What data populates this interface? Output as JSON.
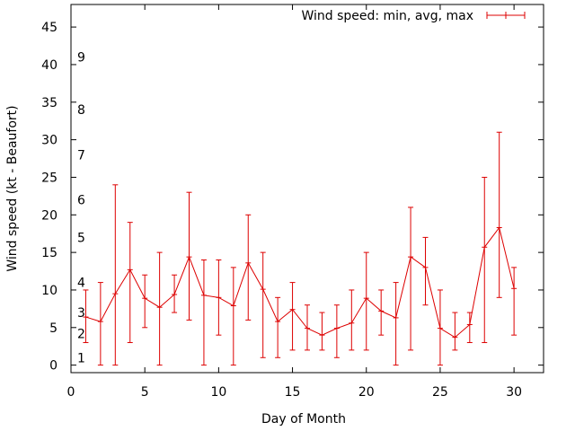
{
  "chart_data": {
    "type": "line",
    "title": "",
    "xlabel": "Day of Month",
    "ylabel": "Wind speed (kt - Beaufort)",
    "xlim": [
      0,
      32
    ],
    "ylim": [
      -1,
      48
    ],
    "x_ticks": [
      0,
      5,
      10,
      15,
      20,
      25,
      30
    ],
    "y_ticks": [
      0,
      5,
      10,
      15,
      20,
      25,
      30,
      35,
      40,
      45
    ],
    "legend": {
      "label": "Wind speed: min, avg, max",
      "position": "top-right"
    },
    "series_color": "#dd0000",
    "beaufort_labels": [
      {
        "label": "1",
        "y": 1
      },
      {
        "label": "2",
        "y": 4.2
      },
      {
        "label": "3",
        "y": 7
      },
      {
        "label": "4",
        "y": 11
      },
      {
        "label": "5",
        "y": 17
      },
      {
        "label": "6",
        "y": 22
      },
      {
        "label": "7",
        "y": 28
      },
      {
        "label": "8",
        "y": 34
      },
      {
        "label": "9",
        "y": 41
      }
    ],
    "series": [
      {
        "name": "Wind speed: min, avg, max",
        "points": [
          {
            "x": 1,
            "min": 3,
            "avg": 6.4,
            "max": 10
          },
          {
            "x": 2,
            "min": 0,
            "avg": 5.8,
            "max": 11
          },
          {
            "x": 3,
            "min": 0,
            "avg": 9.5,
            "max": 24
          },
          {
            "x": 4,
            "min": 3,
            "avg": 12.7,
            "max": 19
          },
          {
            "x": 5,
            "min": 5,
            "avg": 8.9,
            "max": 12
          },
          {
            "x": 6,
            "min": 0,
            "avg": 7.7,
            "max": 15
          },
          {
            "x": 7,
            "min": 7,
            "avg": 9.4,
            "max": 12
          },
          {
            "x": 8,
            "min": 6,
            "avg": 14.4,
            "max": 23
          },
          {
            "x": 9,
            "min": 0,
            "avg": 9.3,
            "max": 14
          },
          {
            "x": 10,
            "min": 4,
            "avg": 9.0,
            "max": 14
          },
          {
            "x": 11,
            "min": 0,
            "avg": 7.9,
            "max": 13
          },
          {
            "x": 12,
            "min": 6,
            "avg": 13.6,
            "max": 20
          },
          {
            "x": 13,
            "min": 1,
            "avg": 10.1,
            "max": 15
          },
          {
            "x": 14,
            "min": 1,
            "avg": 5.8,
            "max": 9
          },
          {
            "x": 15,
            "min": 2,
            "avg": 7.4,
            "max": 11
          },
          {
            "x": 16,
            "min": 2,
            "avg": 4.9,
            "max": 8
          },
          {
            "x": 17,
            "min": 2,
            "avg": 4.0,
            "max": 7
          },
          {
            "x": 18,
            "min": 1,
            "avg": 4.9,
            "max": 8
          },
          {
            "x": 19,
            "min": 2,
            "avg": 5.6,
            "max": 10
          },
          {
            "x": 20,
            "min": 2,
            "avg": 8.9,
            "max": 15
          },
          {
            "x": 21,
            "min": 4,
            "avg": 7.2,
            "max": 10
          },
          {
            "x": 22,
            "min": 0,
            "avg": 6.3,
            "max": 11
          },
          {
            "x": 23,
            "min": 2,
            "avg": 14.4,
            "max": 21
          },
          {
            "x": 24,
            "min": 8,
            "avg": 13.0,
            "max": 17
          },
          {
            "x": 25,
            "min": 0,
            "avg": 4.9,
            "max": 10
          },
          {
            "x": 26,
            "min": 2,
            "avg": 3.7,
            "max": 7
          },
          {
            "x": 27,
            "min": 3,
            "avg": 5.4,
            "max": 7
          },
          {
            "x": 28,
            "min": 3,
            "avg": 15.7,
            "max": 25
          },
          {
            "x": 29,
            "min": 9,
            "avg": 18.3,
            "max": 31
          },
          {
            "x": 30,
            "min": 4,
            "avg": 10.2,
            "max": 13
          }
        ]
      }
    ]
  }
}
